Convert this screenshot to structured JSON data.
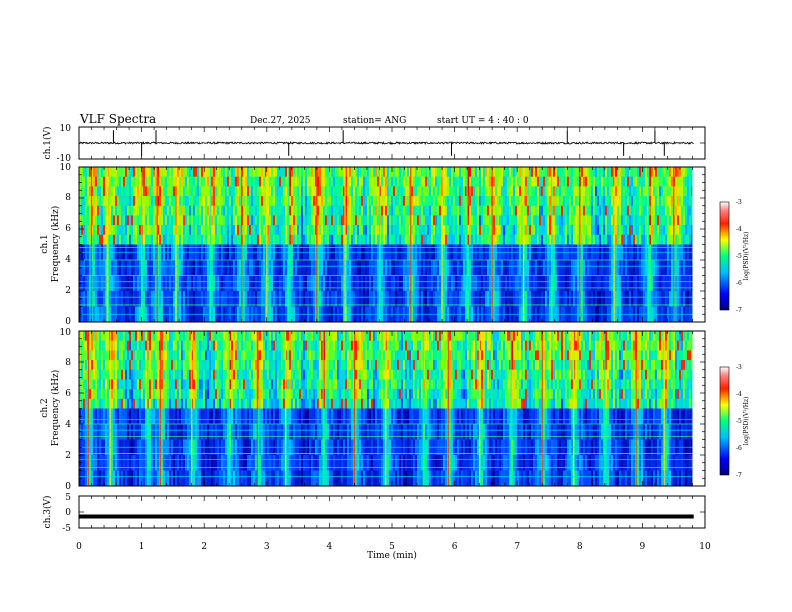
{
  "header": {
    "title": "VLF Spectra",
    "date": "Dec.27, 2025",
    "station": "station= ANG",
    "start_ut": "start  UT =   4 : 40 : 0"
  },
  "chart_data": [
    {
      "type": "line",
      "panel": "ch1-waveform",
      "ylabel": "ch.1(V)",
      "ylim": [
        -10,
        10
      ],
      "y_ticks": [
        "10",
        "-10"
      ],
      "baseline": 0,
      "noise_band": 0.6,
      "spikes_min": [
        0.55,
        1.0,
        1.23,
        3.35,
        4.22,
        5.95,
        7.8,
        8.7,
        9.2,
        9.35
      ],
      "xlim": [
        0,
        10
      ]
    },
    {
      "type": "heatmap",
      "panel": "ch1-spectrogram",
      "ylabel": "ch.1\nFrequency (kHz)",
      "ylim": [
        0,
        10
      ],
      "y_ticks": [
        "0",
        "2",
        "4",
        "6",
        "8",
        "10"
      ],
      "data_extent_min": [
        0,
        9.8
      ],
      "colorbar": {
        "label": "log(PSD)(V²/Hz)",
        "range": [
          -7,
          -3
        ],
        "ticks": [
          "-3",
          "-4",
          "-5",
          "-6",
          "-7"
        ]
      },
      "lines_khz": [
        0.5,
        1.1,
        1.6,
        2.2,
        2.6,
        3.0,
        3.6,
        4.0,
        4.5,
        4.8
      ],
      "bursts_min": [
        0.2,
        0.45,
        1.0,
        1.25,
        1.55,
        2.1,
        2.6,
        3.0,
        3.35,
        3.8,
        4.25,
        4.8,
        5.3,
        5.8,
        6.2,
        6.6,
        7.1,
        7.55,
        8.0,
        8.55,
        9.1,
        9.5
      ]
    },
    {
      "type": "heatmap",
      "panel": "ch2-spectrogram",
      "ylabel": "ch.2\nFrequency (kHz)",
      "ylim": [
        0,
        10
      ],
      "y_ticks": [
        "0",
        "2",
        "4",
        "6",
        "8",
        "10"
      ],
      "data_extent_min": [
        0,
        9.8
      ],
      "colorbar": {
        "label": "log(PSD)(V²/Hz)",
        "range": [
          -7,
          -3
        ],
        "ticks": [
          "-3",
          "-4",
          "-5",
          "-6",
          "-7"
        ]
      },
      "lines_khz": [
        0.6,
        1.2,
        1.7,
        2.1,
        2.5,
        3.2,
        3.6,
        4.0,
        4.3
      ],
      "bursts_min": [
        0.15,
        0.5,
        1.1,
        1.3,
        1.8,
        2.4,
        2.85,
        3.3,
        3.9,
        4.4,
        4.9,
        5.5,
        5.9,
        6.4,
        6.9,
        7.4,
        7.9,
        8.4,
        8.9,
        9.35
      ]
    },
    {
      "type": "line",
      "panel": "ch3-waveform",
      "ylabel": "ch.3(V)",
      "ylim": [
        -5,
        5
      ],
      "y_ticks": [
        "5",
        "0",
        "-5"
      ],
      "baseline": -1.4,
      "noise_band": 0.1,
      "xlim": [
        0,
        10
      ]
    }
  ],
  "x_axis": {
    "label": "Time  (min)",
    "ticks": [
      "0",
      "1",
      "2",
      "3",
      "4",
      "5",
      "6",
      "7",
      "8",
      "9",
      "10"
    ],
    "xlim": [
      0,
      10
    ]
  },
  "colors": {
    "frame": "#000000",
    "signal": "#000000",
    "colormap": [
      "#000020",
      "#00008b",
      "#0000ff",
      "#0080ff",
      "#00ffff",
      "#00ff80",
      "#80ff00",
      "#ffff00",
      "#ff8000",
      "#ff0000",
      "#ffffff"
    ]
  }
}
